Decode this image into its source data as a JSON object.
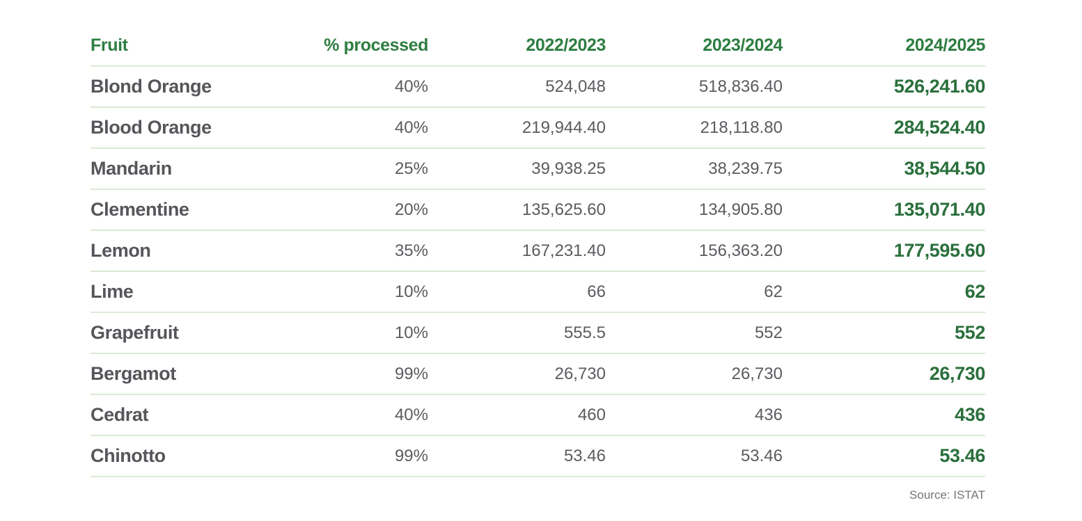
{
  "colors": {
    "header_green": "#2e7d41",
    "value_green": "#2a6f3c",
    "text_dark": "#55565a",
    "text_value": "#5a5b5f",
    "divider": "#dcead7",
    "source_gray": "#737477"
  },
  "table": {
    "columns": [
      "Fruit",
      "% processed",
      "2022/2023",
      "2023/2024",
      "2024/2025"
    ],
    "rows": [
      [
        "Blond Orange",
        "40%",
        "524,048",
        "518,836.40",
        "526,241.60"
      ],
      [
        "Blood Orange",
        "40%",
        "219,944.40",
        "218,118.80",
        "284,524.40"
      ],
      [
        "Mandarin",
        "25%",
        "39,938.25",
        "38,239.75",
        "38,544.50"
      ],
      [
        "Clementine",
        "20%",
        "135,625.60",
        "134,905.80",
        "135,071.40"
      ],
      [
        "Lemon",
        "35%",
        "167,231.40",
        "156,363.20",
        "177,595.60"
      ],
      [
        "Lime",
        "10%",
        "66",
        "62",
        "62"
      ],
      [
        "Grapefruit",
        "10%",
        "555.5",
        "552",
        "552"
      ],
      [
        "Bergamot",
        "99%",
        "26,730",
        "26,730",
        "26,730"
      ],
      [
        "Cedrat",
        "40%",
        "460",
        "436",
        "436"
      ],
      [
        "Chinotto",
        "99%",
        "53.46",
        "53.46",
        "53.46"
      ]
    ]
  },
  "source": "Source: ISTAT",
  "chart_data": {
    "type": "table",
    "columns": [
      "Fruit",
      "% processed",
      "2022/2023",
      "2023/2024",
      "2024/2025"
    ],
    "rows": [
      {
        "fruit": "Blond Orange",
        "pct_processed": 40,
        "y2022_2023": 524048,
        "y2023_2024": 518836.4,
        "y2024_2025": 526241.6
      },
      {
        "fruit": "Blood Orange",
        "pct_processed": 40,
        "y2022_2023": 219944.4,
        "y2023_2024": 218118.8,
        "y2024_2025": 284524.4
      },
      {
        "fruit": "Mandarin",
        "pct_processed": 25,
        "y2022_2023": 39938.25,
        "y2023_2024": 38239.75,
        "y2024_2025": 38544.5
      },
      {
        "fruit": "Clementine",
        "pct_processed": 20,
        "y2022_2023": 135625.6,
        "y2023_2024": 134905.8,
        "y2024_2025": 135071.4
      },
      {
        "fruit": "Lemon",
        "pct_processed": 35,
        "y2022_2023": 167231.4,
        "y2023_2024": 156363.2,
        "y2024_2025": 177595.6
      },
      {
        "fruit": "Lime",
        "pct_processed": 10,
        "y2022_2023": 66,
        "y2023_2024": 62,
        "y2024_2025": 62
      },
      {
        "fruit": "Grapefruit",
        "pct_processed": 10,
        "y2022_2023": 555.5,
        "y2023_2024": 552,
        "y2024_2025": 552
      },
      {
        "fruit": "Bergamot",
        "pct_processed": 99,
        "y2022_2023": 26730,
        "y2023_2024": 26730,
        "y2024_2025": 26730
      },
      {
        "fruit": "Cedrat",
        "pct_processed": 40,
        "y2022_2023": 460,
        "y2023_2024": 436,
        "y2024_2025": 436
      },
      {
        "fruit": "Chinotto",
        "pct_processed": 99,
        "y2022_2023": 53.46,
        "y2023_2024": 53.46,
        "y2024_2025": 53.46
      }
    ],
    "source": "Source: ISTAT",
    "notes": "Last column (2024/2025) highlighted in bold green"
  }
}
